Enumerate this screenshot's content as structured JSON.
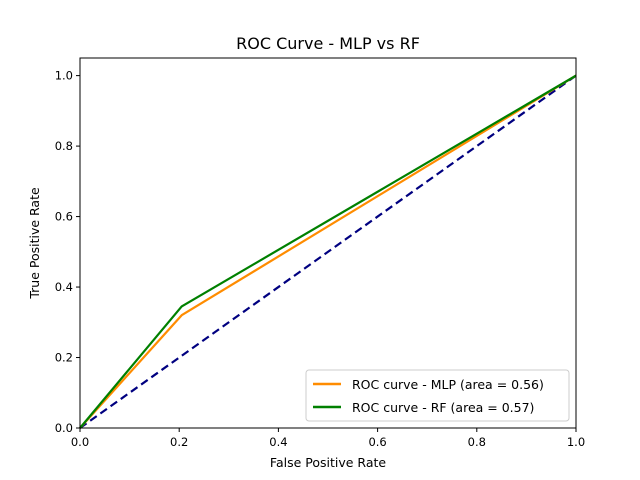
{
  "chart_data": {
    "type": "line",
    "title": "ROC Curve - MLP vs RF",
    "xlabel": "False Positive Rate",
    "ylabel": "True Positive Rate",
    "xlim": [
      0.0,
      1.0
    ],
    "ylim": [
      0.0,
      1.05
    ],
    "grid": false,
    "legend_position": "lower-right",
    "x_ticks": [
      "0.0",
      "0.2",
      "0.4",
      "0.6",
      "0.8",
      "1.0"
    ],
    "y_ticks": [
      "0.0",
      "0.2",
      "0.4",
      "0.6",
      "0.8",
      "1.0"
    ],
    "x_tick_values": [
      0.0,
      0.2,
      0.4,
      0.6,
      0.8,
      1.0
    ],
    "y_tick_values": [
      0.0,
      0.2,
      0.4,
      0.6,
      0.8,
      1.0
    ],
    "series": [
      {
        "name": "ROC curve - MLP (area = 0.56)",
        "color": "#ff8c00",
        "x": [
          0.0,
          0.205,
          1.0
        ],
        "y": [
          0.0,
          0.32,
          1.0
        ]
      },
      {
        "name": "ROC curve - RF (area = 0.57)",
        "color": "#008000",
        "x": [
          0.0,
          0.205,
          1.0
        ],
        "y": [
          0.0,
          0.345,
          1.0
        ]
      }
    ],
    "reference_line": {
      "color": "#000080",
      "style": "dashed",
      "x": [
        0.0,
        1.0
      ],
      "y": [
        0.0,
        1.0
      ]
    }
  }
}
